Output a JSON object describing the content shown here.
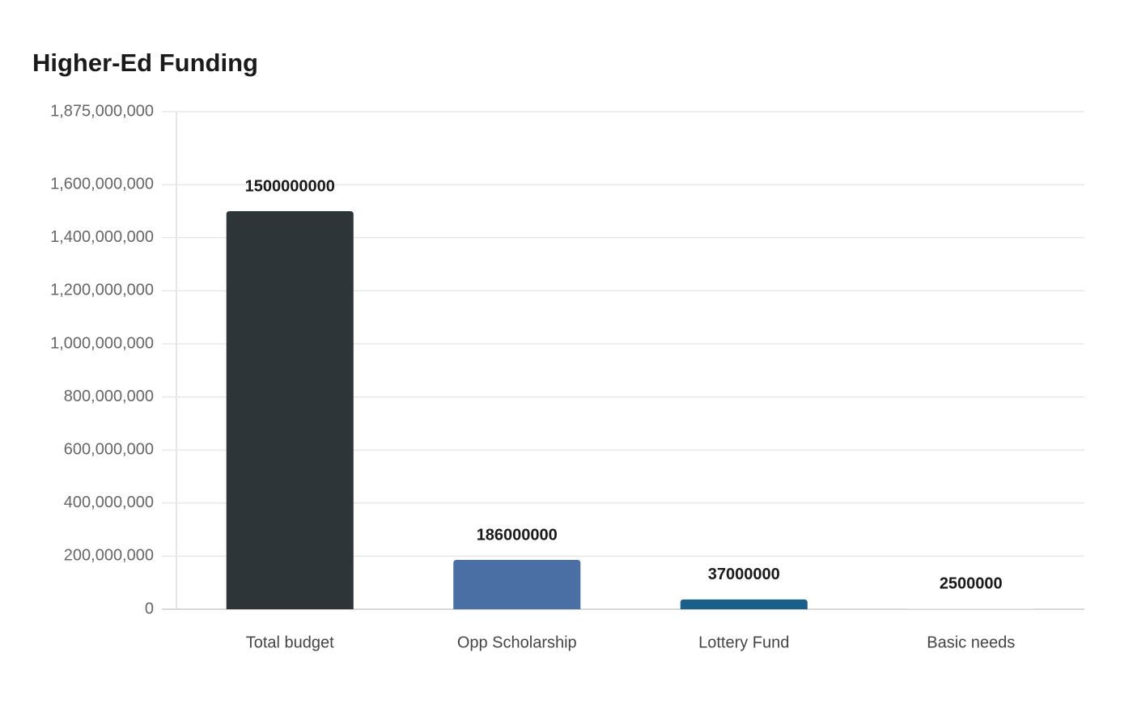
{
  "chart_data": {
    "type": "bar",
    "title": "Higher-Ed Funding",
    "categories": [
      "Total budget",
      "Opp Scholarship",
      "Lottery Fund",
      "Basic needs"
    ],
    "values": [
      1500000000,
      186000000,
      37000000,
      2500000
    ],
    "colors": [
      "#2e3538",
      "#4a6fa5",
      "#1a5f8a",
      "#e3e3e3"
    ],
    "ylim": [
      0,
      1875000000
    ],
    "yticks": [
      0,
      {
        "value": 200000000,
        "label": "200,000,000"
      },
      {
        "value": 400000000,
        "label": "400,000,000"
      },
      {
        "value": 600000000,
        "label": "600,000,000"
      },
      {
        "value": 800000000,
        "label": "800,000,000"
      },
      {
        "value": 1000000000,
        "label": "1,000,000,000"
      },
      {
        "value": 1200000000,
        "label": "1,200,000,000"
      },
      {
        "value": 1400000000,
        "label": "1,400,000,000"
      },
      {
        "value": 1600000000,
        "label": "1,600,000,000"
      },
      {
        "value": 1875000000,
        "label": "1,875,000,000"
      }
    ],
    "grid": true
  }
}
